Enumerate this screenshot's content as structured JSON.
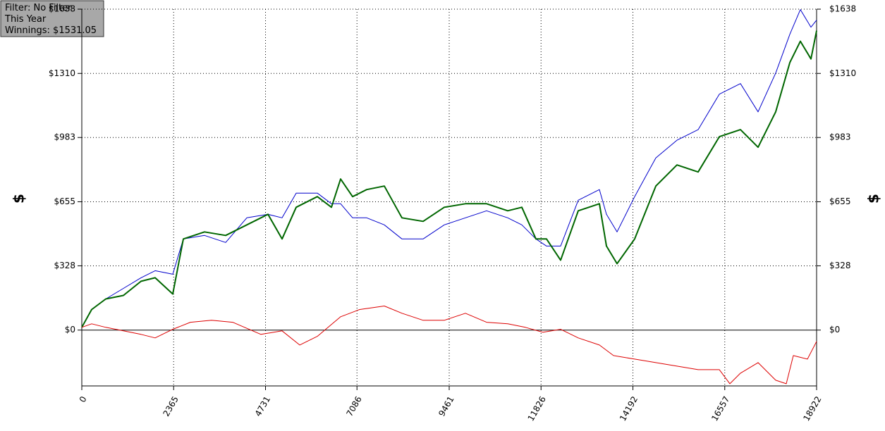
{
  "chart_data": {
    "type": "line",
    "legend_lines": [
      "Filter: No Filter",
      "This Year",
      "Winnings: $1531.05"
    ],
    "ylabel": "$",
    "y2label": "$",
    "xlim": [
      0,
      18922
    ],
    "xticks": [
      0,
      2365,
      4731,
      7086,
      9461,
      11826,
      14192,
      16557,
      18922
    ],
    "ylim": [
      -285,
      1638
    ],
    "yticks": [
      {
        "value": 0,
        "label": "$0"
      },
      {
        "value": 328,
        "label": "$328"
      },
      {
        "value": 655,
        "label": "$655"
      },
      {
        "value": 983,
        "label": "$983"
      },
      {
        "value": 1310,
        "label": "$1310"
      },
      {
        "value": 1638,
        "label": "$1638"
      }
    ],
    "y2lim": [
      -285,
      1638
    ],
    "y2ticks": [
      {
        "value": 0,
        "label": "$0"
      },
      {
        "value": 328,
        "label": "$328"
      },
      {
        "value": 655,
        "label": "$655"
      },
      {
        "value": 983,
        "label": "$983"
      },
      {
        "value": 1310,
        "label": "$1310"
      },
      {
        "value": 1638,
        "label": "$1638"
      }
    ],
    "grid": true,
    "series": [
      {
        "color": "#0000cc",
        "width": 1,
        "x": [
          0,
          254,
          617,
          1071,
          1525,
          1889,
          2343,
          2615,
          3160,
          3705,
          4249,
          4794,
          5157,
          5521,
          6065,
          6429,
          6665,
          6973,
          7337,
          7791,
          8245,
          8789,
          9334,
          9879,
          10424,
          10969,
          11332,
          11695,
          11967,
          12331,
          12785,
          13329,
          13511,
          13783,
          14237,
          14782,
          15327,
          15872,
          16417,
          16961,
          17415,
          17869,
          18233,
          18505,
          18777,
          18922
        ],
        "values": [
          14,
          105,
          159,
          213,
          267,
          303,
          285,
          465,
          483,
          447,
          573,
          591,
          573,
          699,
          699,
          645,
          645,
          573,
          573,
          537,
          465,
          465,
          537,
          573,
          609,
          573,
          537,
          465,
          429,
          429,
          663,
          717,
          591,
          501,
          681,
          879,
          969,
          1023,
          1204,
          1258,
          1114,
          1312,
          1510,
          1636,
          1546,
          1582
        ]
      },
      {
        "color": "#006600",
        "width": 2,
        "x": [
          0,
          254,
          617,
          1071,
          1525,
          1889,
          2343,
          2615,
          3160,
          3705,
          4249,
          4794,
          5157,
          5521,
          6065,
          6429,
          6665,
          6973,
          7337,
          7791,
          8245,
          8789,
          9334,
          9879,
          10424,
          10969,
          11332,
          11695,
          11967,
          12331,
          12785,
          13329,
          13511,
          13783,
          14237,
          14782,
          15327,
          15872,
          16417,
          16961,
          17415,
          17869,
          18233,
          18505,
          18777,
          18922
        ],
        "values": [
          14,
          105,
          159,
          177,
          249,
          267,
          184,
          465,
          501,
          483,
          537,
          591,
          465,
          627,
          681,
          627,
          771,
          681,
          717,
          735,
          573,
          555,
          627,
          645,
          645,
          609,
          627,
          465,
          465,
          357,
          609,
          645,
          429,
          339,
          465,
          735,
          843,
          807,
          987,
          1023,
          933,
          1114,
          1366,
          1474,
          1384,
          1528
        ]
      },
      {
        "color": "#dd0000",
        "width": 1,
        "x": [
          0,
          254,
          617,
          1071,
          1525,
          1889,
          2343,
          2797,
          3341,
          3886,
          4613,
          5157,
          5611,
          6065,
          6665,
          7155,
          7791,
          8245,
          8789,
          9334,
          9879,
          10424,
          10969,
          11423,
          11877,
          12331,
          12785,
          13329,
          13693,
          14237,
          14782,
          15327,
          15872,
          16417,
          16689,
          16961,
          17415,
          17869,
          18142,
          18323,
          18686,
          18922
        ],
        "values": [
          14,
          32,
          14,
          -4,
          -22,
          -40,
          4,
          40,
          50,
          40,
          -22,
          -4,
          -76,
          -32,
          68,
          105,
          123,
          86,
          50,
          50,
          86,
          40,
          32,
          14,
          -11,
          4,
          -40,
          -76,
          -130,
          -148,
          -166,
          -184,
          -202,
          -202,
          -274,
          -220,
          -166,
          -256,
          -274,
          -130,
          -148,
          -58
        ]
      }
    ]
  }
}
